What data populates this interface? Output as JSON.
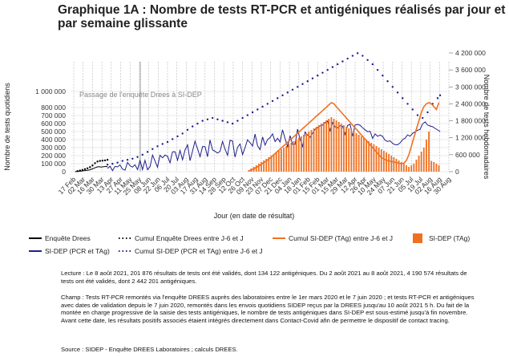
{
  "title": "Graphique 1A : Nombre de tests RT-PCR et antigéniques réalisés par jour et par semaine glissante",
  "chart_data": {
    "type": "line",
    "xlabel": "Jour (en date de résultat)",
    "ylabel_left": "Nombre de tests quotidiens",
    "ylabel_right": "Nombre de tests hebdomadaires",
    "left_ticks": [
      "0",
      "100 000",
      "200 000",
      "300 000",
      "400 000",
      "500 000",
      "600 000",
      "700 000",
      "800 000",
      "1 000 000"
    ],
    "left_tick_values": [
      0,
      100000,
      200000,
      300000,
      400000,
      500000,
      600000,
      700000,
      800000,
      1000000
    ],
    "right_ticks": [
      "0",
      "600 000",
      "1 200 000",
      "1 800 000",
      "2 400 000",
      "3 000 000",
      "3 600 000",
      "4 200 000"
    ],
    "right_tick_values": [
      0,
      600000,
      1200000,
      1800000,
      2400000,
      3000000,
      3600000,
      4200000
    ],
    "x_ticks": [
      "17 Feb",
      "02 Mar",
      "16 Mar",
      "30 Mar",
      "13 Apr",
      "27 Apr",
      "11 May",
      "25 May",
      "08 Jun",
      "22 Jun",
      "06 Jul",
      "20 Jul",
      "03 Aug",
      "17 Aug",
      "31 Aug",
      "14 Sep",
      "28 Sep",
      "12 Oct",
      "26 Oct",
      "09 Nov",
      "23 Nov",
      "07 Dec",
      "21 Dec",
      "04 Jan",
      "18 Jan",
      "01 Feb",
      "15 Feb",
      "01 Mar",
      "15 Mar",
      "29 Mar",
      "12 Apr",
      "26 Apr",
      "10 May",
      "24 May",
      "07 Jun",
      "21 Jun",
      "05 Jul",
      "19 Jul",
      "02 Aug",
      "16 Aug",
      "30 Aug"
    ],
    "annotation": "Passage de l'enquête Drees à SI-DEP",
    "annotation_date_index": 27,
    "series": [
      {
        "name": "Enquête Drees",
        "color": "#000000",
        "style": "solid",
        "x_index": [
          1.0,
          2.0,
          3.0,
          4.0,
          5.0,
          6.0,
          7.0,
          8.0,
          9.0,
          10.0,
          11.0,
          12.0,
          13.0,
          14.0,
          15.0,
          16.0,
          17.0,
          18.0,
          19.0,
          20.0,
          21.0,
          22.0,
          23.0,
          24.0,
          25.0,
          26.0,
          27.0
        ],
        "values": [
          1000,
          2000,
          3000,
          5000,
          6000,
          8000,
          10000,
          12000,
          14000,
          16000,
          18000,
          20000,
          24000,
          30000,
          36000,
          42000,
          48000,
          55000,
          60000,
          62000,
          60000,
          58000,
          60000,
          62000,
          64000,
          66000,
          60000
        ]
      },
      {
        "name": "Cumul Enquête Drees entre J-6 et J",
        "color": "#000000",
        "style": "dotted",
        "x_index": [
          3.0,
          5.0,
          7.0,
          9.0,
          11.0,
          13.0,
          15.0,
          17.0,
          19.0,
          21.0,
          23.0,
          25.0,
          27.0
        ],
        "values": [
          20000,
          40000,
          60000,
          90000,
          120000,
          160000,
          220000,
          300000,
          360000,
          380000,
          390000,
          400000,
          420000
        ]
      },
      {
        "name": "SI-DEP (PCR et TAg)",
        "color": "#1f1f8c",
        "style": "solid",
        "x_index": [
          27.0,
          29.0,
          31.0,
          33.0,
          35.0,
          37.0,
          39.0,
          41.0,
          43.0,
          45.0,
          47.0,
          49.0,
          51.0,
          53.0,
          55.0,
          57.0,
          59.0,
          61.0,
          63.0,
          65.0,
          67.0,
          69.0,
          71.0,
          73.0,
          75.0,
          77.0,
          79.0,
          81.0,
          83.0,
          85.0,
          87.0,
          89.0,
          91.0,
          93.0,
          95.0,
          97.0,
          99.0,
          101.0,
          103.0,
          105.0,
          107.0,
          109.0,
          111.0,
          113.0,
          115.0,
          117.0,
          119.0,
          121.0,
          123.0,
          125.0,
          127.0,
          129.0,
          131.0,
          133.0,
          135.0,
          137.0,
          139.0,
          141.0,
          143.0,
          145.0,
          147.0,
          149.0,
          151.0,
          153.0,
          155.0,
          157.0,
          159.0,
          161.0,
          163.0,
          165.0,
          167.0,
          169.0,
          171.0,
          173.0,
          175.0,
          177.0,
          179.0,
          181.0,
          183.0,
          185.0,
          187.0,
          189.0,
          191.0,
          193.0,
          195.0,
          197.0,
          199.0,
          201.0,
          203.0,
          205.0,
          207.0,
          209.0,
          211.0,
          213.0,
          215.0,
          217.0,
          219.0,
          221.0,
          223.0,
          225.0,
          227.0,
          229.0,
          231.0,
          233.0,
          235.0,
          237.0,
          239.0,
          241.0,
          243.0,
          245.0,
          247.0,
          249.0,
          251.0,
          253.0,
          255.0,
          257.0,
          259.0,
          261.0,
          263.0,
          265.0,
          267.0,
          269.0,
          271.0,
          273.0,
          275.0,
          277.0,
          279.0,
          281.0,
          283.0,
          285.0,
          287.0,
          289.0,
          291.0,
          293.0
        ],
        "values": [
          39650,
          68000,
          12100,
          66100,
          59700,
          84400,
          32700,
          18600,
          116000,
          75300,
          56600,
          86000,
          25800,
          140100,
          25900,
          141500,
          25100,
          64300,
          206900,
          132900,
          55500,
          205000,
          173400,
          207200,
          191500,
          111100,
          247600,
          249200,
          143300,
          264800,
          147900,
          269300,
          335300,
          137300,
          256200,
          379600,
          287400,
          186900,
          314300,
          312700,
          186300,
          394800,
          270300,
          254500,
          232500,
          253300,
          375700,
          279800,
          203700,
          391100,
          381900,
          181500,
          304000,
          345800,
          212600,
          299100,
          397900,
          360900,
          319700,
          468900,
          323000,
          274900,
          431700,
          331800,
          398800,
          424800,
          470500,
          375600,
          416100,
          370300,
          521700,
          413600,
          310900,
          447600,
          339600,
          339800,
          530800,
          401200,
          313300,
          493900,
          455800,
          428700,
          479900,
          529500,
          545300,
          570600,
          581200,
          611000,
          632500,
          510400,
          613000,
          558800,
          545600,
          571900,
          566000,
          464000,
          576500,
          590300,
          443000,
          581000,
          590400,
          578900,
          546600,
          521700,
          498300,
          504100,
          416100,
          471400,
          440700,
          457000,
          440400,
          390700,
          376600,
          385000,
          353500,
          335700,
          334800,
          360100,
          398600,
          418300,
          459300,
          442100,
          478400,
          496800,
          517100,
          527600,
          596000,
          620000,
          580000,
          570000,
          560000,
          540000,
          520000,
          500000
        ]
      },
      {
        "name": "Cumul SI-DEP (PCR et TAg) entre J-6 et J",
        "color": "#1f1f8c",
        "style": "dotted",
        "x_index": [
          27.0,
          31.0,
          35.0,
          39.0,
          43.0,
          47.0,
          51.0,
          55.0,
          59.0,
          63.0,
          67.0,
          71.0,
          75.0,
          79.0,
          83.0,
          87.0,
          91.0,
          95.0,
          99.0,
          103.0,
          107.0,
          111.0,
          115.0,
          119.0,
          123.0,
          127.0,
          131.0,
          135.0,
          139.0,
          143.0,
          147.0,
          151.0,
          155.0,
          159.0,
          163.0,
          167.0,
          171.0,
          175.0,
          179.0,
          183.0,
          187.0,
          191.0,
          195.0,
          199.0,
          203.0,
          207.0,
          211.0,
          215.0,
          219.0,
          223.0,
          227.0,
          231.0,
          235.0,
          239.0,
          243.0,
          247.0,
          251.0,
          255.0,
          259.0,
          263.0,
          267.0,
          271.0,
          275.0,
          279.0,
          283.0,
          287.0,
          291.0,
          293.0
        ],
        "values": [
          250000,
          280000,
          320000,
          380000,
          420000,
          460000,
          520000,
          600000,
          700000,
          800000,
          900000,
          980000,
          1050000,
          1150000,
          1250000,
          1350000,
          1480000,
          1600000,
          1700000,
          1800000,
          1850000,
          1900000,
          1850000,
          1800000,
          1750000,
          1700000,
          1800000,
          1900000,
          2000000,
          2100000,
          2200000,
          2300000,
          2400000,
          2500000,
          2600000,
          2700000,
          2800000,
          2900000,
          3000000,
          3100000,
          3200000,
          3300000,
          3400000,
          3500000,
          3600000,
          3700000,
          3800000,
          3900000,
          4000000,
          4100000,
          4190574,
          4100000,
          3950000,
          3800000,
          3600000,
          3400000,
          3200000,
          3000000,
          2800000,
          2600000,
          2400000,
          2200000,
          2000000,
          1900000,
          2100000,
          2400000,
          2600000,
          2700000
        ]
      },
      {
        "name": "Cumul SI-DEP (TAg) entre J-6 et J",
        "color": "#f07020",
        "style": "solid",
        "x_index": [
          140.0,
          142.0,
          144.0,
          146.0,
          148.0,
          150.0,
          152.0,
          154.0,
          156.0,
          158.0,
          160.0,
          162.0,
          164.0,
          166.0,
          168.0,
          170.0,
          172.0,
          174.0,
          176.0,
          178.0,
          180.0,
          182.0,
          184.0,
          186.0,
          188.0,
          190.0,
          192.0,
          194.0,
          196.0,
          198.0,
          200.0,
          202.0,
          204.0,
          206.0,
          208.0,
          210.0,
          212.0,
          214.0,
          216.0,
          218.0,
          220.0,
          222.0,
          224.0,
          226.0,
          228.0,
          230.0,
          232.0,
          234.0,
          236.0,
          238.0,
          240.0,
          242.0,
          244.0,
          246.0,
          248.0,
          250.0,
          252.0,
          254.0,
          256.0,
          258.0,
          260.0,
          262.0,
          264.0,
          266.0,
          268.0,
          270.0,
          272.0,
          274.0,
          276.0,
          278.0,
          280.0,
          282.0,
          284.0,
          286.0,
          288.0,
          290.0,
          292.0
        ],
        "values": [
          30000,
          60000,
          100000,
          150000,
          200000,
          260000,
          320000,
          380000,
          440000,
          520000,
          600000,
          680000,
          760000,
          840000,
          920000,
          1000000,
          1080000,
          1160000,
          1240000,
          1320000,
          1400000,
          1480000,
          1560000,
          1640000,
          1720000,
          1800000,
          1880000,
          1960000,
          2040000,
          2120000,
          2200000,
          2280000,
          2360000,
          2442201,
          2400000,
          2300000,
          2200000,
          2100000,
          2000000,
          1900000,
          1800000,
          1700000,
          1600000,
          1500000,
          1400000,
          1300000,
          1200000,
          1100000,
          1000000,
          900000,
          800000,
          700000,
          600000,
          500000,
          450000,
          400000,
          380000,
          360000,
          340000,
          320000,
          300000,
          280000,
          300000,
          400000,
          600000,
          900000,
          1200000,
          1500000,
          1800000,
          2100000,
          2300000,
          2400000,
          2442201,
          2400000,
          2300000,
          2200000,
          2442201
        ]
      },
      {
        "name": "SI-DEP (TAg)",
        "color": "#f07020",
        "style": "bar",
        "x_index": [
          140.0,
          142.0,
          144.0,
          146.0,
          148.0,
          150.0,
          152.0,
          154.0,
          156.0,
          158.0,
          160.0,
          162.0,
          164.0,
          166.0,
          168.0,
          170.0,
          172.0,
          174.0,
          176.0,
          178.0,
          180.0,
          182.0,
          184.0,
          186.0,
          188.0,
          190.0,
          192.0,
          194.0,
          196.0,
          198.0,
          200.0,
          202.0,
          204.0,
          206.0,
          208.0,
          210.0,
          212.0,
          214.0,
          216.0,
          218.0,
          220.0,
          222.0,
          224.0,
          226.0,
          228.0,
          230.0,
          232.0,
          234.0,
          236.0,
          238.0,
          240.0,
          242.0,
          244.0,
          246.0,
          248.0,
          250.0,
          252.0,
          254.0,
          256.0,
          258.0,
          260.0,
          262.0,
          264.0,
          266.0,
          268.0,
          270.0,
          272.0,
          274.0,
          276.0,
          278.0,
          280.0,
          282.0,
          284.0,
          286.0,
          288.0,
          290.0,
          292.0
        ],
        "values": [
          20000,
          40000,
          60000,
          80000,
          100000,
          120000,
          140000,
          160000,
          180000,
          200000,
          220000,
          240000,
          260000,
          280000,
          300000,
          320000,
          340000,
          360000,
          380000,
          400000,
          420000,
          440000,
          460000,
          480000,
          500000,
          520000,
          540000,
          560000,
          580000,
          600000,
          620000,
          640000,
          660000,
          680000,
          660000,
          640000,
          620000,
          600000,
          580000,
          560000,
          540000,
          520000,
          500000,
          480000,
          460000,
          440000,
          420000,
          400000,
          380000,
          360000,
          340000,
          320000,
          300000,
          280000,
          260000,
          240000,
          220000,
          200000,
          180000,
          160000,
          140000,
          120000,
          100000,
          80000,
          60000,
          80000,
          100000,
          150000,
          200000,
          250000,
          300000,
          400000,
          500000,
          134122,
          120000,
          100000,
          80000
        ]
      }
    ]
  },
  "legend": [
    {
      "label": "Enquête Drees",
      "kind": "solid-line",
      "color": "#000000"
    },
    {
      "label": "Cumul Enquête Drees entre J-6 et J",
      "kind": "dotted-line",
      "color": "#000000"
    },
    {
      "label": "Cumul SI-DEP (TAg) entre J-6 et J",
      "kind": "solid-line",
      "color": "#f07020"
    },
    {
      "label": "SI-DEP (TAg)",
      "kind": "box",
      "color": "#f07020"
    },
    {
      "label": "SI-DEP (PCR et TAg)",
      "kind": "solid-line",
      "color": "#1f1f8c"
    },
    {
      "label": "Cumul SI-DEP (PCR et TAg) entre J-6 et J",
      "kind": "dotted-line",
      "color": "#1f1f8c"
    }
  ],
  "notes": {
    "lecture": "Lecture : Le 8 août 2021, 201 876 résultats de tests ont été validés, dont 134 122 antigéniques. Du 2 août 2021 au 8 août 2021, 4 190 574 résultats de tests ont été validés, dont 2 442 201 antigéniques.",
    "champ": "Champ : Tests RT-PCR remontés via l'enquête DREES auprès des laboratoires entre le 1er mars 2020 et le 7 juin 2020 ; et tests RT-PCR et antigéniques avec dates de validation depuis le 7 juin 2020, remontés dans les envois quotidiens SIDEP reçus par la DREES jusqu'au 10 août 2021 5 h. Du fait de la montée en charge progressive de la saisie des tests antigéniques, le nombre de tests antigéniques dans SI-DEP est sous-estimé jusqu'à fin novembre. Avant cette date, les résultats positifs associés étaient intégrés directement dans Contact-Covid afin de permettre le dispositif de contact tracing.",
    "source": "Source : SIDEP - Enquête DREES Laboratoires ; calculs DREES."
  }
}
